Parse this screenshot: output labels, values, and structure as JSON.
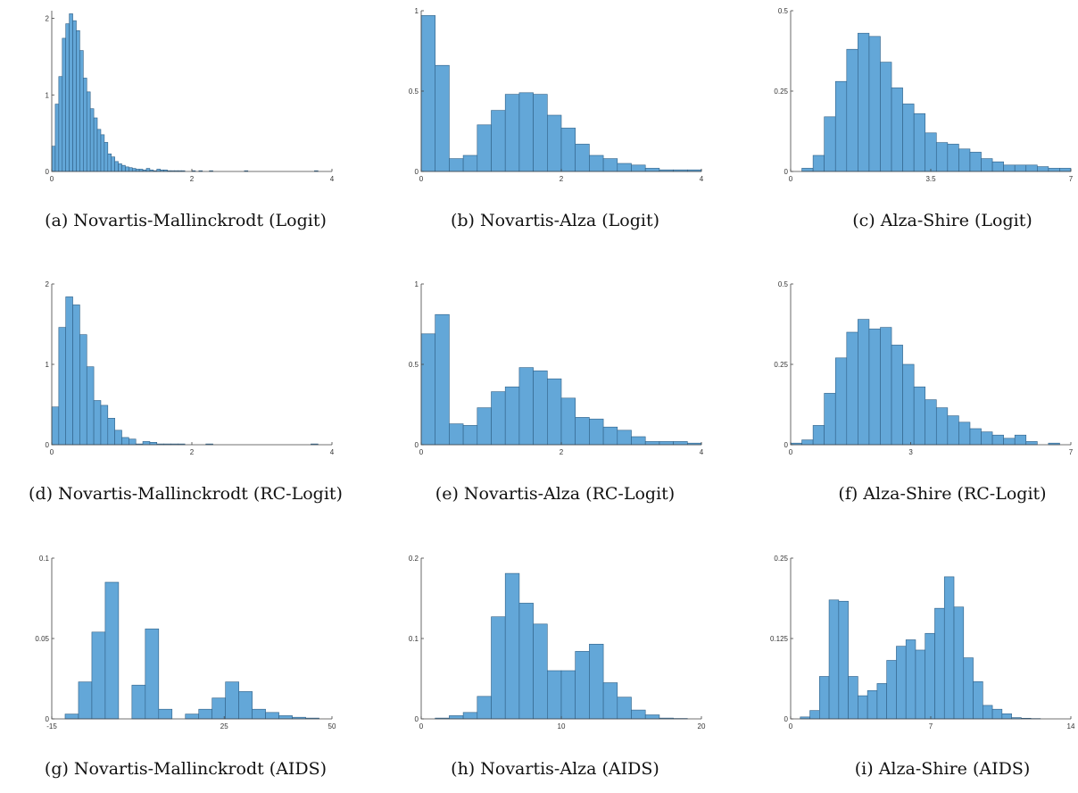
{
  "chart_data": [
    {
      "type": "bar",
      "caption": "(a) Novartis-Mallinckrodt (Logit)",
      "xlim": [
        0,
        4
      ],
      "ylim": [
        0,
        2.1
      ],
      "xticks": [
        "0",
        "2",
        "4"
      ],
      "xtick_values": [
        0,
        2,
        4
      ],
      "yticks": [
        "0",
        "1",
        "2"
      ],
      "ytick_values": [
        0,
        1,
        2
      ],
      "bin_start": 0,
      "bin_width": 0.05,
      "values": [
        0.33,
        0.88,
        1.24,
        1.74,
        1.93,
        2.06,
        1.97,
        1.84,
        1.58,
        1.22,
        1.04,
        0.82,
        0.7,
        0.55,
        0.48,
        0.38,
        0.23,
        0.19,
        0.13,
        0.1,
        0.08,
        0.06,
        0.05,
        0.04,
        0.03,
        0.03,
        0.02,
        0.04,
        0.02,
        0.01,
        0.03,
        0.02,
        0.02,
        0.01,
        0.01,
        0.01,
        0.01,
        0.01,
        0,
        0,
        0.01,
        0,
        0.01,
        0,
        0,
        0.01,
        0,
        0,
        0,
        0,
        0,
        0,
        0,
        0,
        0,
        0.01,
        0,
        0,
        0,
        0,
        0,
        0,
        0,
        0,
        0,
        0,
        0,
        0,
        0,
        0,
        0,
        0,
        0,
        0,
        0,
        0.01,
        0,
        0,
        0,
        0
      ]
    },
    {
      "type": "bar",
      "caption": "(b) Novartis-Alza (Logit)",
      "xlim": [
        0,
        4
      ],
      "ylim": [
        0,
        1
      ],
      "xticks": [
        "0",
        "2",
        "4"
      ],
      "xtick_values": [
        0,
        2,
        4
      ],
      "yticks": [
        "0",
        "0.5",
        "1"
      ],
      "ytick_values": [
        0,
        0.5,
        1
      ],
      "bin_start": 0,
      "bin_width": 0.2,
      "values": [
        0.97,
        0.66,
        0.08,
        0.1,
        0.29,
        0.38,
        0.48,
        0.49,
        0.48,
        0.35,
        0.27,
        0.17,
        0.1,
        0.08,
        0.05,
        0.04,
        0.02,
        0.01,
        0.01,
        0.01
      ]
    },
    {
      "type": "bar",
      "caption": "(c) Alza-Shire (Logit)",
      "xlim": [
        0,
        7
      ],
      "ylim": [
        0,
        0.5
      ],
      "xticks": [
        "0",
        "3.5",
        "7"
      ],
      "xtick_values": [
        0,
        3.5,
        7
      ],
      "yticks": [
        "0",
        "0.25",
        "0.5"
      ],
      "ytick_values": [
        0,
        0.25,
        0.5
      ],
      "bin_start": 0,
      "bin_width": 0.28,
      "values": [
        0,
        0.01,
        0.05,
        0.17,
        0.28,
        0.38,
        0.43,
        0.42,
        0.34,
        0.26,
        0.21,
        0.18,
        0.12,
        0.09,
        0.085,
        0.07,
        0.06,
        0.04,
        0.03,
        0.02,
        0.02,
        0.02,
        0.015,
        0.01,
        0.01
      ]
    },
    {
      "type": "bar",
      "caption": "(d) Novartis-Mallinckrodt (RC-Logit)",
      "xlim": [
        0,
        4
      ],
      "ylim": [
        0,
        2
      ],
      "xticks": [
        "0",
        "2",
        "4"
      ],
      "xtick_values": [
        0,
        2,
        4
      ],
      "yticks": [
        "0",
        "1",
        "2"
      ],
      "ytick_values": [
        0,
        1,
        2
      ],
      "bin_start": 0,
      "bin_width": 0.1,
      "values": [
        0.47,
        1.46,
        1.84,
        1.74,
        1.37,
        0.97,
        0.55,
        0.49,
        0.33,
        0.18,
        0.09,
        0.07,
        0.01,
        0.04,
        0.03,
        0.01,
        0.01,
        0.01,
        0.01,
        0,
        0,
        0,
        0.01,
        0,
        0,
        0,
        0,
        0,
        0,
        0,
        0,
        0,
        0,
        0,
        0,
        0,
        0,
        0.01,
        0,
        0
      ]
    },
    {
      "type": "bar",
      "caption": "(e) Novartis-Alza (RC-Logit)",
      "xlim": [
        0,
        4
      ],
      "ylim": [
        0,
        1
      ],
      "xticks": [
        "0",
        "2",
        "4"
      ],
      "xtick_values": [
        0,
        2,
        4
      ],
      "yticks": [
        "0",
        "0.5",
        "1"
      ],
      "ytick_values": [
        0,
        0.5,
        1
      ],
      "bin_start": 0,
      "bin_width": 0.2,
      "values": [
        0.69,
        0.81,
        0.13,
        0.12,
        0.23,
        0.33,
        0.36,
        0.48,
        0.46,
        0.41,
        0.29,
        0.17,
        0.16,
        0.11,
        0.09,
        0.05,
        0.02,
        0.02,
        0.02,
        0.01
      ]
    },
    {
      "type": "bar",
      "caption": "(f) Alza-Shire (RC-Logit)",
      "xlim": [
        0,
        7
      ],
      "ylim": [
        0,
        0.5
      ],
      "xticks": [
        "0",
        "3",
        "7"
      ],
      "xtick_values": [
        0,
        3,
        7
      ],
      "yticks": [
        "0",
        "0.25",
        "0.5"
      ],
      "ytick_values": [
        0,
        0.25,
        0.5
      ],
      "bin_start": 0,
      "bin_width": 0.28,
      "values": [
        0.005,
        0.015,
        0.06,
        0.16,
        0.27,
        0.35,
        0.39,
        0.36,
        0.365,
        0.31,
        0.25,
        0.18,
        0.14,
        0.115,
        0.09,
        0.07,
        0.05,
        0.04,
        0.03,
        0.02,
        0.03,
        0.01,
        0,
        0.005
      ]
    },
    {
      "type": "bar",
      "caption": "(g) Novartis-Mallinckrodt (AIDS)",
      "xlim": [
        -15,
        50
      ],
      "ylim": [
        0,
        0.1
      ],
      "xticks": [
        "-15",
        "25",
        "50"
      ],
      "xtick_values": [
        -15,
        25,
        50
      ],
      "yticks": [
        "0",
        "0.05",
        "0.1"
      ],
      "ytick_values": [
        0,
        0.05,
        0.1
      ],
      "bin_start": -15,
      "bin_width": 3.1,
      "values": [
        0,
        0.003,
        0.023,
        0.054,
        0.085,
        0,
        0.021,
        0.056,
        0.006,
        0,
        0.003,
        0.006,
        0.013,
        0.023,
        0.017,
        0.006,
        0.004,
        0.002,
        0.001,
        0.0005
      ]
    },
    {
      "type": "bar",
      "caption": "(h) Novartis-Alza (AIDS)",
      "xlim": [
        0,
        20
      ],
      "ylim": [
        0,
        0.2
      ],
      "xticks": [
        "0",
        "10",
        "20"
      ],
      "xtick_values": [
        0,
        10,
        20
      ],
      "yticks": [
        "0",
        "0.1",
        "0.2"
      ],
      "ytick_values": [
        0,
        0.1,
        0.2
      ],
      "bin_start": 0,
      "bin_width": 1,
      "values": [
        0,
        0.001,
        0.004,
        0.008,
        0.028,
        0.127,
        0.181,
        0.144,
        0.118,
        0.06,
        0.06,
        0.084,
        0.093,
        0.045,
        0.027,
        0.011,
        0.005,
        0.001,
        0.0005,
        0
      ]
    },
    {
      "type": "bar",
      "caption": "(i) Alza-Shire (AIDS)",
      "xlim": [
        0,
        14
      ],
      "ylim": [
        0,
        0.25
      ],
      "xticks": [
        "0",
        "7",
        "14"
      ],
      "xtick_values": [
        0,
        7,
        14
      ],
      "yticks": [
        "0",
        "0.125",
        "0.25"
      ],
      "ytick_values": [
        0,
        0.125,
        0.25
      ],
      "bin_start": 0,
      "bin_width": 0.48,
      "values": [
        0,
        0.003,
        0.013,
        0.066,
        0.185,
        0.183,
        0.066,
        0.036,
        0.044,
        0.055,
        0.091,
        0.113,
        0.123,
        0.107,
        0.133,
        0.172,
        0.221,
        0.174,
        0.095,
        0.058,
        0.021,
        0.015,
        0.008,
        0.002,
        0.001,
        0.0005
      ]
    }
  ]
}
